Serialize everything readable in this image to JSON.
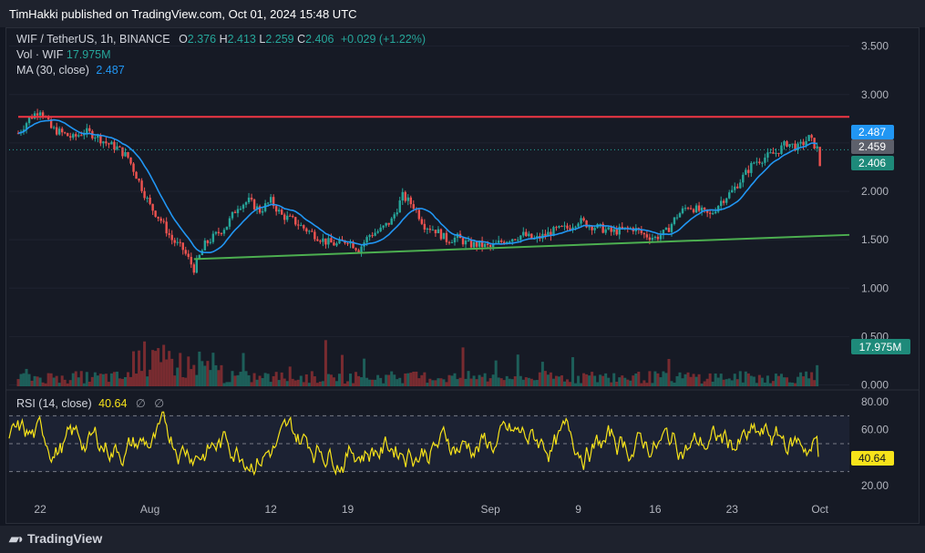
{
  "header": {
    "published_text": "TimHakki published on TradingView.com, Oct 01, 2024 15:48 UTC"
  },
  "legend": {
    "symbol": "WIF / TetherUS, 1h, BINANCE",
    "o_label": "O",
    "o_value": "2.376",
    "h_label": "H",
    "h_value": "2.413",
    "l_label": "L",
    "l_value": "2.259",
    "c_label": "C",
    "c_value": "2.406",
    "change": "+0.029 (+1.22%)",
    "vol_label": "Vol · WIF",
    "vol_value": "17.975M",
    "ma_label": "MA (30, close)",
    "ma_value": "2.487",
    "rsi_label": "RSI (14, close)",
    "rsi_value": "40.64",
    "rsi_icons": [
      "∅",
      "∅"
    ]
  },
  "footer": {
    "brand": "TradingView",
    "logo_icon": "tradingview-logo-icon"
  },
  "colors": {
    "up": "#26a69a",
    "down": "#ef5350",
    "ma": "#2196f3",
    "rsi": "#f7e31a",
    "resistance": "#f23645",
    "support": "#4caf50",
    "bg": "#161a25"
  },
  "chart_data": [
    {
      "type": "candlestick",
      "title": "WIF / TetherUS, 1h, BINANCE",
      "x_ticks": [
        "22",
        "Aug",
        "12",
        "19",
        "Sep",
        "9",
        "16",
        "23",
        "Oct"
      ],
      "y_ticks": [
        "3.500",
        "3.000",
        "2.500",
        "2.000",
        "1.500",
        "1.000",
        "0.500",
        "0.000"
      ],
      "ylim": [
        0,
        3.6
      ],
      "scale": "linear",
      "close_path": {
        "x": [
          "Jul 20",
          "Jul 21",
          "Jul 22",
          "Jul 23",
          "Jul 24",
          "Jul 25",
          "Jul 26",
          "Jul 27",
          "Jul 28",
          "Jul 29",
          "Jul 30",
          "Jul 31",
          "Aug 1",
          "Aug 2",
          "Aug 3",
          "Aug 4",
          "Aug 5",
          "Aug 6",
          "Aug 7",
          "Aug 8",
          "Aug 9",
          "Aug 10",
          "Aug 11",
          "Aug 12",
          "Aug 13",
          "Aug 14",
          "Aug 15",
          "Aug 16",
          "Aug 17",
          "Aug 18",
          "Aug 19",
          "Aug 20",
          "Aug 21",
          "Aug 22",
          "Aug 23",
          "Aug 24",
          "Aug 25",
          "Aug 26",
          "Aug 27",
          "Aug 28",
          "Aug 29",
          "Aug 30",
          "Aug 31",
          "Sep 1",
          "Sep 2",
          "Sep 3",
          "Sep 4",
          "Sep 5",
          "Sep 6",
          "Sep 7",
          "Sep 8",
          "Sep 9",
          "Sep 10",
          "Sep 11",
          "Sep 12",
          "Sep 13",
          "Sep 14",
          "Sep 15",
          "Sep 16",
          "Sep 17",
          "Sep 18",
          "Sep 19",
          "Sep 20",
          "Sep 21",
          "Sep 22",
          "Sep 23",
          "Sep 24",
          "Sep 25",
          "Sep 26",
          "Sep 27",
          "Sep 28",
          "Sep 29",
          "Sep 30",
          "Oct 1"
        ],
        "y": [
          2.6,
          2.75,
          2.85,
          2.65,
          2.6,
          2.55,
          2.62,
          2.58,
          2.5,
          2.45,
          2.35,
          2.1,
          1.85,
          1.7,
          1.5,
          1.4,
          1.2,
          1.45,
          1.55,
          1.65,
          1.85,
          1.9,
          1.8,
          1.9,
          1.75,
          1.7,
          1.62,
          1.55,
          1.48,
          1.45,
          1.5,
          1.4,
          1.55,
          1.6,
          1.7,
          1.95,
          1.85,
          1.65,
          1.6,
          1.5,
          1.52,
          1.45,
          1.45,
          1.42,
          1.48,
          1.52,
          1.55,
          1.5,
          1.55,
          1.6,
          1.62,
          1.7,
          1.65,
          1.62,
          1.58,
          1.6,
          1.62,
          1.55,
          1.52,
          1.58,
          1.75,
          1.85,
          1.8,
          1.75,
          1.9,
          2.0,
          2.15,
          2.3,
          2.35,
          2.4,
          2.5,
          2.45,
          2.55,
          2.406
        ]
      },
      "moving_average": {
        "name": "MA (30, close)",
        "last": 2.487
      },
      "resistance_line": [
        [
          "Jul 20",
          2.77
        ],
        [
          "Oct 2",
          2.77
        ]
      ],
      "support_line": [
        [
          "Aug 5",
          1.3
        ],
        [
          "Oct 2",
          1.55
        ]
      ],
      "price_labels": [
        "2.487",
        "2.459",
        "2.406"
      ]
    },
    {
      "type": "bar",
      "title": "Vol · WIF",
      "last_value": "17.975M"
    },
    {
      "type": "line",
      "title": "RSI (14, close)",
      "y_ticks": [
        "80.00",
        "60.00",
        "40.00",
        "20.00"
      ],
      "ylim": [
        15,
        85
      ],
      "bands": [
        30,
        50,
        70
      ],
      "last_value": "40.64"
    }
  ]
}
